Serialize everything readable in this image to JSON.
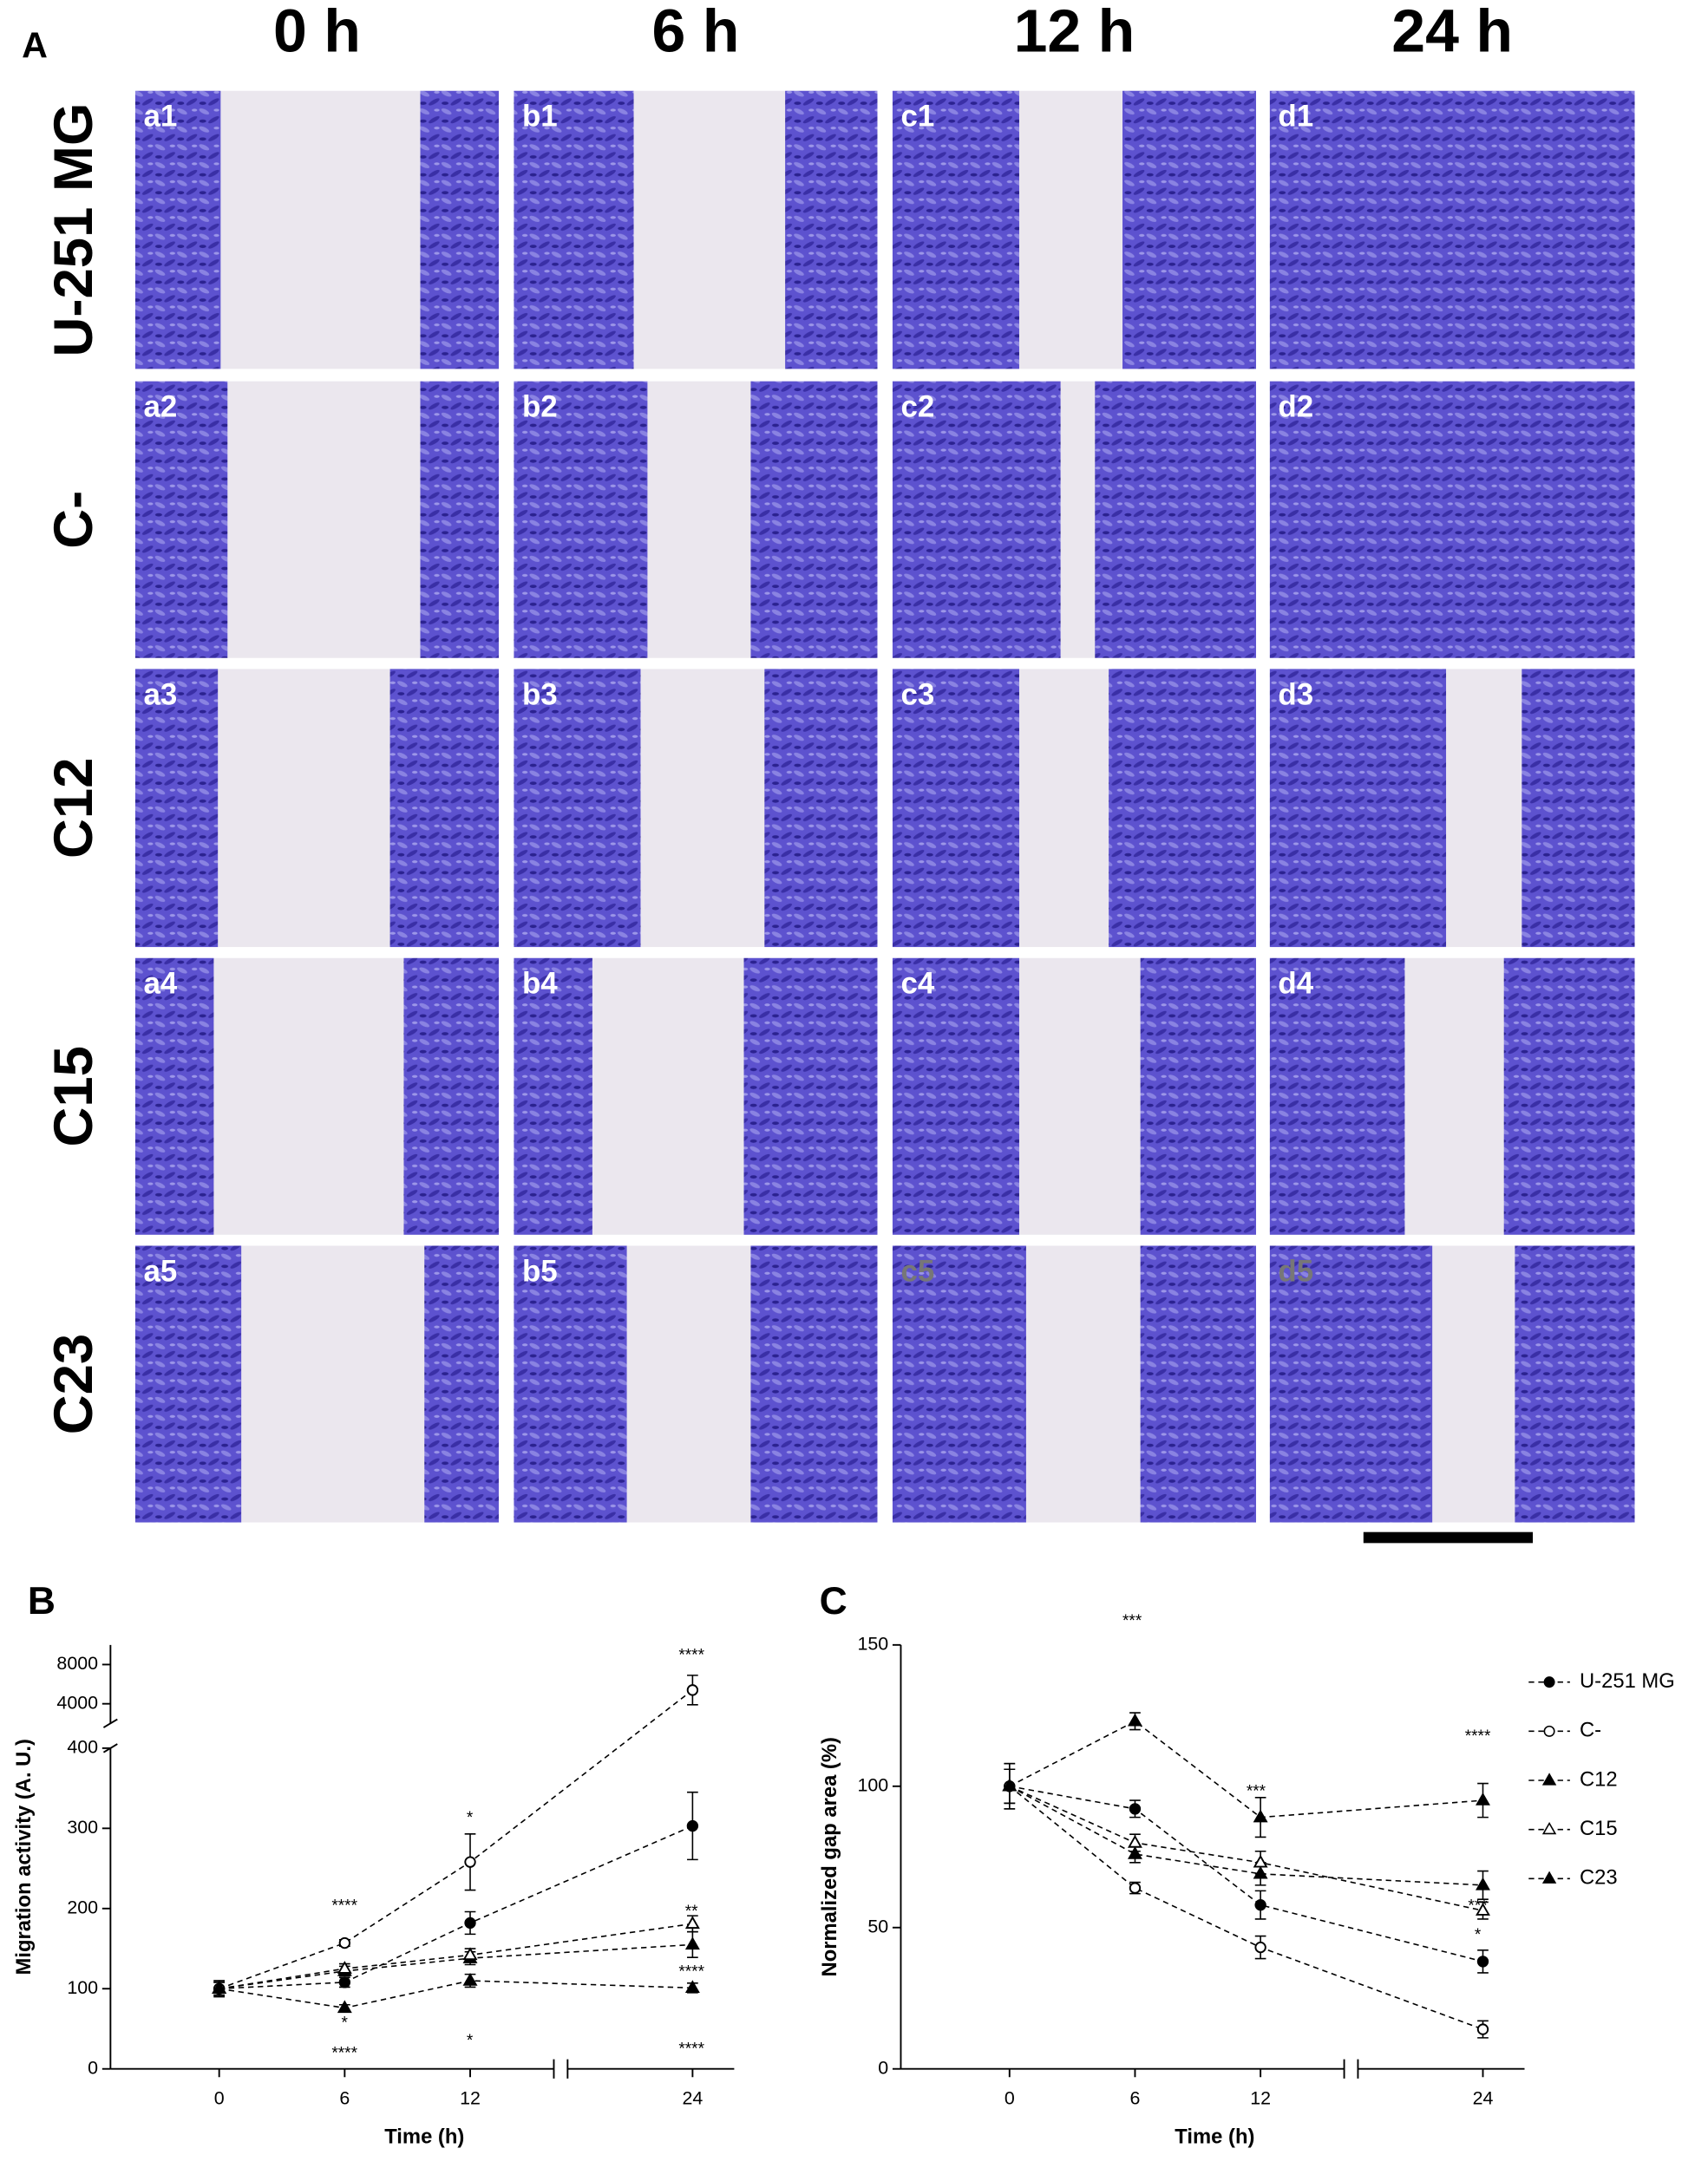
{
  "panel_a": {
    "label": "A",
    "columns": [
      "0 h",
      "6 h",
      "12 h",
      "24 h"
    ],
    "rows": [
      "U-251 MG",
      "C-",
      "C12",
      "C15",
      "C23"
    ],
    "panels": [
      [
        "a1",
        "b1",
        "c1",
        "d1"
      ],
      [
        "a2",
        "b2",
        "c2",
        "d2"
      ],
      [
        "a3",
        "b3",
        "c3",
        "d3"
      ],
      [
        "a4",
        "b4",
        "c4",
        "d4"
      ],
      [
        "a5",
        "b5",
        "c5",
        "d5"
      ]
    ]
  },
  "chart_data": [
    {
      "type": "line",
      "label": "B",
      "x_label": "Time (h)",
      "y_label": "Migration activity (A. U.)",
      "x": [
        0,
        6,
        12,
        24
      ],
      "xlim": [
        -5,
        26
      ],
      "xbreak": [
        16,
        18
      ],
      "xticks": [
        0,
        6,
        12,
        24
      ],
      "ylim": [
        0,
        10000
      ],
      "ybreak": [
        400,
        2000
      ],
      "yticks": [
        0,
        100,
        200,
        300,
        400,
        4000,
        8000
      ],
      "color": "#000000",
      "legend": false,
      "series": [
        {
          "name": "U-251 MG",
          "marker": "circle",
          "filled": true,
          "values": [
            100,
            108,
            182,
            303
          ],
          "errors": [
            10,
            6,
            14,
            42
          ]
        },
        {
          "name": "C-",
          "marker": "circle",
          "filled": false,
          "values": [
            100,
            157,
            258,
            5400
          ],
          "errors": [
            10,
            4,
            35,
            1500
          ]
        },
        {
          "name": "C12",
          "marker": "triangle",
          "filled": true,
          "values": [
            100,
            122,
            138,
            155
          ],
          "errors": [
            8,
            6,
            8,
            16
          ]
        },
        {
          "name": "C15",
          "marker": "triangle",
          "filled": false,
          "values": [
            100,
            125,
            142,
            181
          ],
          "errors": [
            8,
            6,
            8,
            10
          ]
        },
        {
          "name": "C23",
          "marker": "triangle",
          "filled": true,
          "values": [
            100,
            76,
            110,
            101
          ],
          "errors": [
            8,
            4,
            8,
            6
          ]
        }
      ],
      "annotations": [
        "****",
        "*",
        "****",
        "*",
        "****",
        "*",
        "**",
        "****",
        "****"
      ]
    },
    {
      "type": "line",
      "label": "C",
      "x_label": "Time (h)",
      "y_label": "Normalized gap area (%)",
      "x": [
        0,
        6,
        12,
        24
      ],
      "xlim": [
        -5,
        26
      ],
      "xbreak": [
        16,
        18
      ],
      "xticks": [
        0,
        6,
        12,
        24
      ],
      "ylim": [
        0,
        150
      ],
      "yticks": [
        0,
        50,
        100,
        150
      ],
      "color": "#000000",
      "legend": true,
      "series": [
        {
          "name": "U-251 MG",
          "marker": "circle",
          "filled": true,
          "values": [
            100,
            92,
            58,
            38
          ],
          "errors": [
            8,
            3,
            5,
            4
          ]
        },
        {
          "name": "C-",
          "marker": "circle",
          "filled": false,
          "values": [
            100,
            64,
            43,
            14
          ],
          "errors": [
            8,
            2,
            4,
            3
          ]
        },
        {
          "name": "C12",
          "marker": "triangle",
          "filled": true,
          "values": [
            100,
            76,
            69,
            65
          ],
          "errors": [
            6,
            3,
            4,
            5
          ]
        },
        {
          "name": "C15",
          "marker": "triangle",
          "filled": false,
          "values": [
            100,
            80,
            73,
            56
          ],
          "errors": [
            6,
            3,
            4,
            3
          ]
        },
        {
          "name": "C23",
          "marker": "triangle",
          "filled": true,
          "values": [
            100,
            123,
            89,
            95
          ],
          "errors": [
            6,
            3,
            7,
            6
          ]
        }
      ],
      "annotations": [
        "***",
        "***",
        "****",
        "***",
        "*"
      ]
    }
  ]
}
